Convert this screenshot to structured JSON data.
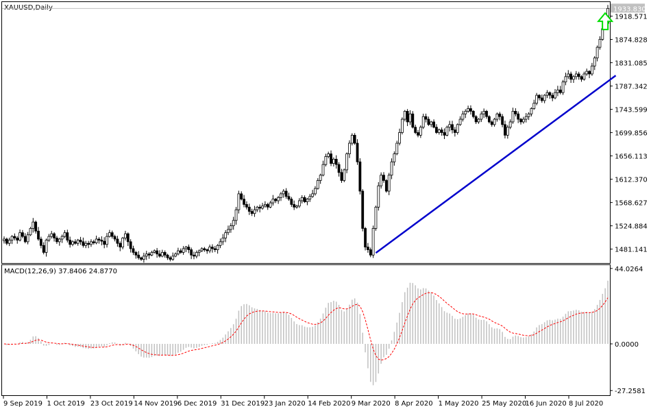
{
  "chart_data": [
    {
      "type": "candlestick",
      "title": "XAUUSD,Daily",
      "current_price_label": "1933.830",
      "y_ticks": [
        "1918.571",
        "1874.828",
        "1831.085",
        "1787.342",
        "1743.599",
        "1699.856",
        "1656.113",
        "1612.370",
        "1568.627",
        "1524.884",
        "1481.141"
      ],
      "y_tick_values": [
        1918.571,
        1874.828,
        1831.085,
        1787.342,
        1743.599,
        1699.856,
        1656.113,
        1612.37,
        1568.627,
        1524.884,
        1481.141
      ],
      "ylim": [
        1455,
        1945
      ],
      "x_ticks": [
        "9 Sep 2019",
        "1 Oct 2019",
        "23 Oct 2019",
        "14 Nov 2019",
        "6 Dec 2019",
        "31 Dec 2019",
        "23 Jan 2020",
        "14 Feb 2020",
        "9 Mar 2020",
        "8 Apr 2020",
        "1 May 2020",
        "25 May 2020",
        "16 Jun 2020",
        "8 Jul 2020"
      ],
      "close_series": [
        1500,
        1492,
        1498,
        1505,
        1502,
        1498,
        1512,
        1505,
        1495,
        1508,
        1520,
        1532,
        1515,
        1500,
        1488,
        1475,
        1498,
        1505,
        1510,
        1502,
        1495,
        1500,
        1505,
        1512,
        1498,
        1490,
        1495,
        1492,
        1498,
        1495,
        1488,
        1492,
        1490,
        1495,
        1493,
        1500,
        1498,
        1496,
        1490,
        1505,
        1512,
        1505,
        1500,
        1492,
        1485,
        1502,
        1510,
        1495,
        1482,
        1475,
        1470,
        1465,
        1462,
        1468,
        1472,
        1470,
        1475,
        1478,
        1472,
        1468,
        1475,
        1470,
        1465,
        1462,
        1468,
        1472,
        1478,
        1475,
        1482,
        1485,
        1480,
        1470,
        1468,
        1475,
        1478,
        1482,
        1480,
        1478,
        1485,
        1482,
        1480,
        1488,
        1495,
        1502,
        1512,
        1518,
        1525,
        1535,
        1555,
        1585,
        1575,
        1565,
        1560,
        1552,
        1548,
        1555,
        1560,
        1558,
        1562,
        1565,
        1560,
        1568,
        1575,
        1572,
        1578,
        1585,
        1590,
        1580,
        1575,
        1565,
        1560,
        1562,
        1572,
        1578,
        1570,
        1575,
        1580,
        1585,
        1595,
        1610,
        1620,
        1640,
        1655,
        1660,
        1642,
        1650,
        1640,
        1625,
        1610,
        1630,
        1660,
        1680,
        1695,
        1680,
        1645,
        1590,
        1520,
        1485,
        1480,
        1470,
        1520,
        1560,
        1600,
        1620,
        1610,
        1590,
        1620,
        1645,
        1660,
        1680,
        1700,
        1725,
        1740,
        1720,
        1735,
        1710,
        1700,
        1695,
        1710,
        1730,
        1725,
        1715,
        1720,
        1710,
        1700,
        1705,
        1700,
        1695,
        1710,
        1715,
        1705,
        1700,
        1715,
        1725,
        1735,
        1740,
        1745,
        1740,
        1730,
        1720,
        1725,
        1735,
        1740,
        1730,
        1720,
        1715,
        1725,
        1735,
        1730,
        1715,
        1695,
        1710,
        1720,
        1740,
        1735,
        1725,
        1720,
        1725,
        1730,
        1735,
        1745,
        1755,
        1770,
        1765,
        1760,
        1770,
        1775,
        1770,
        1765,
        1775,
        1780,
        1775,
        1795,
        1805,
        1810,
        1800,
        1805,
        1810,
        1805,
        1800,
        1810,
        1815,
        1810,
        1825,
        1840,
        1860,
        1875,
        1895,
        1905,
        1933
      ],
      "trendline": {
        "from": {
          "index": 141,
          "price": 1474
        },
        "to": {
          "index": 232,
          "price": 1807
        },
        "color": "#0000cc"
      },
      "annotation": {
        "type": "up-arrow",
        "color": "#00dd00",
        "index": 228,
        "price": 1896
      },
      "bull_color": "#ffffff",
      "bear_color": "#000000"
    },
    {
      "type": "macd",
      "title": "MACD(12,26,9) 37.8406 24.8770",
      "ylim": [
        -30,
        46
      ],
      "y_ticks": [
        "44.0264",
        "0.0000",
        "-27.2581"
      ],
      "y_tick_values": [
        44.0264,
        0,
        -27.2581
      ],
      "histogram_color": "#c0c0c0",
      "signal_color": "#ff0000"
    }
  ]
}
